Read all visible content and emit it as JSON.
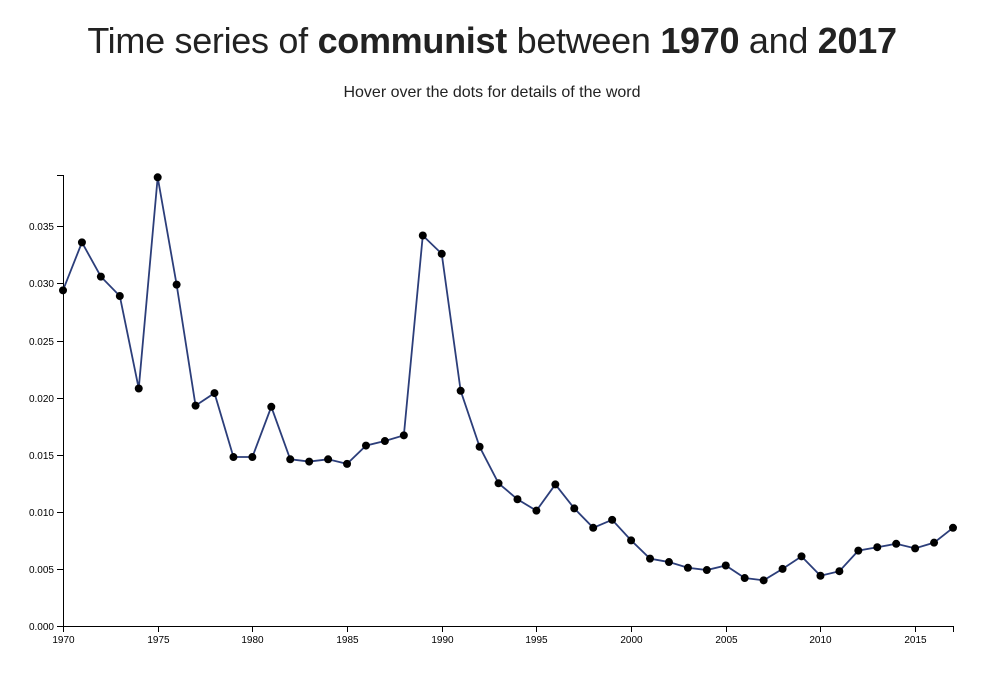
{
  "header": {
    "title_prefix": "Time series of",
    "word": "communist",
    "title_between": "between",
    "start_year": "1970",
    "title_and": "and",
    "end_year": "2017",
    "subtitle": "Hover over the dots for details of the word"
  },
  "chart_data": {
    "type": "line",
    "title": "Time series of communist between 1970 and 2017",
    "subtitle": "Hover over the dots for details of the word",
    "xlabel": "",
    "ylabel": "",
    "xlim": [
      1970,
      2017
    ],
    "ylim": [
      0,
      0.0395
    ],
    "x_ticks": [
      1970,
      1975,
      1980,
      1985,
      1990,
      1995,
      2000,
      2005,
      2010,
      2015
    ],
    "y_ticks": [
      0.0,
      0.005,
      0.01,
      0.015,
      0.02,
      0.025,
      0.03,
      0.035
    ],
    "grid": false,
    "line_color": "#2c3e7a",
    "marker_color": "#000000",
    "series": [
      {
        "x": [
          1970,
          1971,
          1972,
          1973,
          1974,
          1975,
          1976,
          1977,
          1978,
          1979,
          1980,
          1981,
          1982,
          1983,
          1984,
          1985,
          1986,
          1987,
          1988,
          1989,
          1990,
          1991,
          1992,
          1993,
          1994,
          1995,
          1996,
          1997,
          1998,
          1999,
          2000,
          2001,
          2002,
          2003,
          2004,
          2005,
          2006,
          2007,
          2008,
          2009,
          2010,
          2011,
          2012,
          2013,
          2014,
          2015,
          2016,
          2017
        ],
        "values": [
          0.0294,
          0.0336,
          0.0306,
          0.0289,
          0.0208,
          0.0393,
          0.0299,
          0.0193,
          0.0204,
          0.0148,
          0.0148,
          0.0192,
          0.0146,
          0.0144,
          0.0146,
          0.0142,
          0.0158,
          0.0162,
          0.0167,
          0.0342,
          0.0326,
          0.0206,
          0.0157,
          0.0125,
          0.0111,
          0.0101,
          0.0124,
          0.0103,
          0.0086,
          0.0093,
          0.0075,
          0.0059,
          0.0056,
          0.0051,
          0.0049,
          0.0053,
          0.0042,
          0.004,
          0.005,
          0.0061,
          0.0044,
          0.0048,
          0.0066,
          0.0069,
          0.0072,
          0.0068,
          0.0073,
          0.0086
        ]
      }
    ]
  }
}
